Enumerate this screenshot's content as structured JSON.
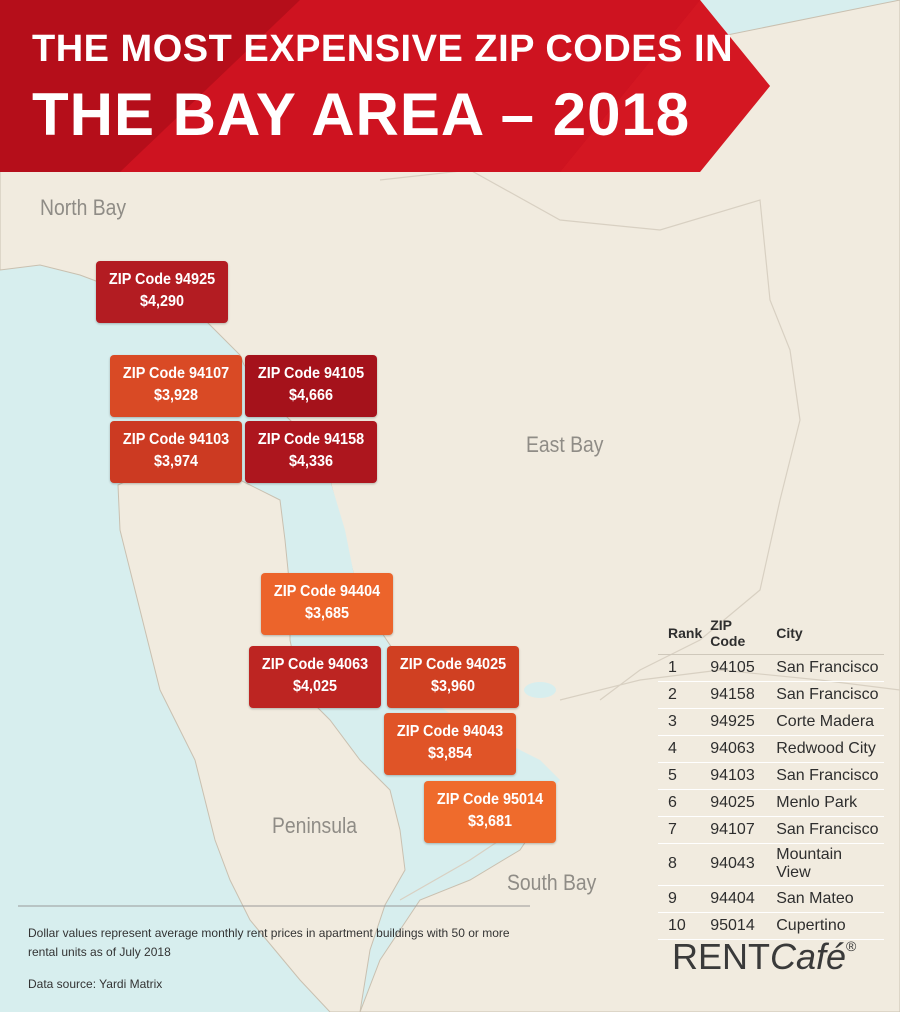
{
  "title": {
    "line1": "THE MOST EXPENSIVE ZIP CODES IN",
    "line2": "THE BAY AREA – 2018"
  },
  "regions": {
    "north_bay": "North Bay",
    "east_bay": "East Bay",
    "peninsula": "Peninsula",
    "south_bay": "South Bay"
  },
  "colors": {
    "banner": "#c8101e",
    "water": "#d7eeee",
    "land": "#f1ebdf",
    "rank_top": "#a8141c",
    "rank_mid": "#c8301f",
    "rank_low": "#ea6a2a"
  },
  "zip_boxes": [
    {
      "label": "ZIP Code 94925",
      "rent": "$4,290",
      "color": "#b31c22"
    },
    {
      "label": "ZIP Code 94107",
      "rent": "$3,928",
      "color": "#d94a25"
    },
    {
      "label": "ZIP Code 94105",
      "rent": "$4,666",
      "color": "#a5121b"
    },
    {
      "label": "ZIP Code 94103",
      "rent": "$3,974",
      "color": "#cc3a22"
    },
    {
      "label": "ZIP Code 94158",
      "rent": "$4,336",
      "color": "#ad161e"
    },
    {
      "label": "ZIP Code 94404",
      "rent": "$3,685",
      "color": "#ec642b"
    },
    {
      "label": "ZIP Code 94063",
      "rent": "$4,025",
      "color": "#bd2522"
    },
    {
      "label": "ZIP Code 94025",
      "rent": "$3,960",
      "color": "#d04022"
    },
    {
      "label": "ZIP Code 94043",
      "rent": "$3,854",
      "color": "#e05427"
    },
    {
      "label": "ZIP Code 95014",
      "rent": "$3,681",
      "color": "#ef6b2c"
    }
  ],
  "table": {
    "headers": {
      "rank": "Rank",
      "zip": "ZIP Code",
      "city": "City"
    },
    "rows": [
      {
        "rank": "1",
        "zip": "94105",
        "city": "San Francisco"
      },
      {
        "rank": "2",
        "zip": "94158",
        "city": "San Francisco"
      },
      {
        "rank": "3",
        "zip": "94925",
        "city": "Corte Madera"
      },
      {
        "rank": "4",
        "zip": "94063",
        "city": "Redwood City"
      },
      {
        "rank": "5",
        "zip": "94103",
        "city": "San Francisco"
      },
      {
        "rank": "6",
        "zip": "94025",
        "city": "Menlo Park"
      },
      {
        "rank": "7",
        "zip": "94107",
        "city": "San Francisco"
      },
      {
        "rank": "8",
        "zip": "94043",
        "city": "Mountain View"
      },
      {
        "rank": "9",
        "zip": "94404",
        "city": "San Mateo"
      },
      {
        "rank": "10",
        "zip": "95014",
        "city": "Cupertino"
      }
    ]
  },
  "footer": {
    "note": "Dollar values represent average monthly rent prices in apartment buildings with 50 or more rental units as of July 2018",
    "source": "Data source:  Yardi Matrix"
  },
  "logo": {
    "rent": "RENT",
    "cafe": "Café",
    "reg": "®"
  }
}
